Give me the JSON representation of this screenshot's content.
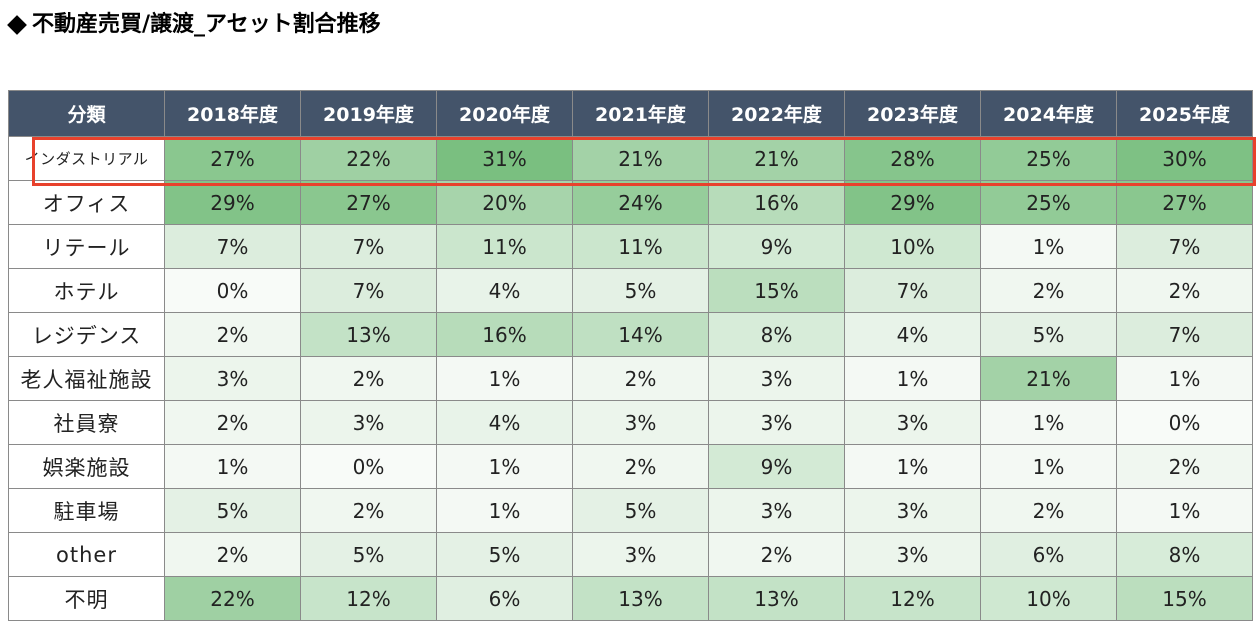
{
  "title": "不動産売買/譲渡_アセット割合推移",
  "chart_data": {
    "type": "table",
    "title": "不動産売買/譲渡_アセット割合推移",
    "header_label": "分類",
    "columns": [
      "2018年度",
      "2019年度",
      "2020年度",
      "2021年度",
      "2022年度",
      "2023年度",
      "2024年度",
      "2025年度"
    ],
    "highlighted_row": "インダストリアル",
    "highlight_color": "#e8412c",
    "header_color": "#44546a",
    "scale_colors": {
      "low": "#f8fbf8",
      "high": "#7abf80"
    },
    "rows": [
      {
        "label": "インダストリアル",
        "values": [
          "27%",
          "22%",
          "31%",
          "21%",
          "21%",
          "28%",
          "25%",
          "30%"
        ],
        "numbers": [
          27,
          22,
          31,
          21,
          21,
          28,
          25,
          30
        ]
      },
      {
        "label": "オフィス",
        "values": [
          "29%",
          "27%",
          "20%",
          "24%",
          "16%",
          "29%",
          "25%",
          "27%"
        ],
        "numbers": [
          29,
          27,
          20,
          24,
          16,
          29,
          25,
          27
        ]
      },
      {
        "label": "リテール",
        "values": [
          "7%",
          "7%",
          "11%",
          "11%",
          "9%",
          "10%",
          "1%",
          "7%"
        ],
        "numbers": [
          7,
          7,
          11,
          11,
          9,
          10,
          1,
          7
        ]
      },
      {
        "label": "ホテル",
        "values": [
          "0%",
          "7%",
          "4%",
          "5%",
          "15%",
          "7%",
          "2%",
          "2%"
        ],
        "numbers": [
          0,
          7,
          4,
          5,
          15,
          7,
          2,
          2
        ]
      },
      {
        "label": "レジデンス",
        "values": [
          "2%",
          "13%",
          "16%",
          "14%",
          "8%",
          "4%",
          "5%",
          "7%"
        ],
        "numbers": [
          2,
          13,
          16,
          14,
          8,
          4,
          5,
          7
        ]
      },
      {
        "label": "老人福祉施設",
        "values": [
          "3%",
          "2%",
          "1%",
          "2%",
          "3%",
          "1%",
          "21%",
          "1%"
        ],
        "numbers": [
          3,
          2,
          1,
          2,
          3,
          1,
          21,
          1
        ]
      },
      {
        "label": "社員寮",
        "values": [
          "2%",
          "3%",
          "4%",
          "3%",
          "3%",
          "3%",
          "1%",
          "0%"
        ],
        "numbers": [
          2,
          3,
          4,
          3,
          3,
          3,
          1,
          0
        ]
      },
      {
        "label": "娯楽施設",
        "values": [
          "1%",
          "0%",
          "1%",
          "2%",
          "9%",
          "1%",
          "1%",
          "2%"
        ],
        "numbers": [
          1,
          0,
          1,
          2,
          9,
          1,
          1,
          2
        ]
      },
      {
        "label": "駐車場",
        "values": [
          "5%",
          "2%",
          "1%",
          "5%",
          "3%",
          "3%",
          "2%",
          "1%"
        ],
        "numbers": [
          5,
          2,
          1,
          5,
          3,
          3,
          2,
          1
        ]
      },
      {
        "label": "other",
        "values": [
          "2%",
          "5%",
          "5%",
          "3%",
          "2%",
          "3%",
          "6%",
          "8%"
        ],
        "numbers": [
          2,
          5,
          5,
          3,
          2,
          3,
          6,
          8
        ]
      },
      {
        "label": "不明",
        "values": [
          "22%",
          "12%",
          "6%",
          "13%",
          "13%",
          "12%",
          "10%",
          "15%"
        ],
        "numbers": [
          22,
          12,
          6,
          13,
          13,
          12,
          10,
          15
        ]
      }
    ]
  }
}
